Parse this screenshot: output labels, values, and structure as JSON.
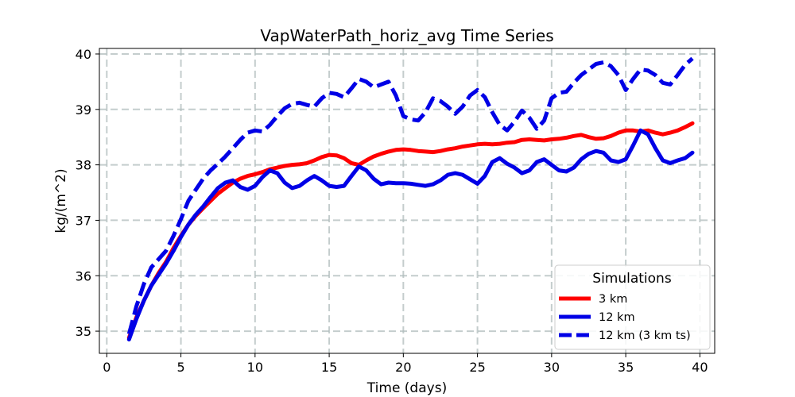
{
  "chart_data": {
    "type": "line",
    "title": "VapWaterPath_horiz_avg Time Series",
    "xlabel": "Time (days)",
    "ylabel": "kg/(m^2)",
    "xlim": [
      -0.5,
      41
    ],
    "ylim": [
      34.6,
      40.1
    ],
    "xticks": [
      0,
      5,
      10,
      15,
      20,
      25,
      30,
      35,
      40
    ],
    "yticks": [
      35,
      36,
      37,
      38,
      39,
      40
    ],
    "grid": true,
    "legend": {
      "title": "Simulations",
      "location": "lower-right"
    },
    "series": [
      {
        "name": "3 km",
        "color": "#ff0000",
        "dash": "solid",
        "x": [
          1.5,
          2,
          2.5,
          3,
          3.5,
          4,
          4.5,
          5,
          5.5,
          6,
          6.5,
          7,
          7.5,
          8,
          8.5,
          9,
          9.5,
          10,
          10.5,
          11,
          11.5,
          12,
          12.5,
          13,
          13.5,
          14,
          14.5,
          15,
          15.5,
          16,
          16.5,
          17,
          17.5,
          18,
          18.5,
          19,
          19.5,
          20,
          20.5,
          21,
          21.5,
          22,
          22.5,
          23,
          23.5,
          24,
          24.5,
          25,
          25.5,
          26,
          26.5,
          27,
          27.5,
          28,
          28.5,
          29,
          29.5,
          30,
          30.5,
          31,
          31.5,
          32,
          32.5,
          33,
          33.5,
          34,
          34.5,
          35,
          35.5,
          36,
          36.5,
          37,
          37.5,
          38,
          38.5,
          39,
          39.5
        ],
        "y": [
          34.88,
          35.25,
          35.55,
          35.82,
          36.05,
          36.25,
          36.5,
          36.72,
          36.92,
          37.08,
          37.22,
          37.35,
          37.48,
          37.58,
          37.68,
          37.75,
          37.8,
          37.83,
          37.87,
          37.92,
          37.95,
          37.98,
          38.0,
          38.01,
          38.03,
          38.08,
          38.14,
          38.18,
          38.17,
          38.12,
          38.03,
          38.0,
          38.08,
          38.15,
          38.2,
          38.24,
          38.27,
          38.28,
          38.27,
          38.25,
          38.24,
          38.23,
          38.25,
          38.28,
          38.3,
          38.33,
          38.35,
          38.37,
          38.38,
          38.37,
          38.38,
          38.4,
          38.41,
          38.45,
          38.46,
          38.45,
          38.44,
          38.46,
          38.47,
          38.49,
          38.52,
          38.54,
          38.5,
          38.47,
          38.48,
          38.52,
          38.58,
          38.62,
          38.62,
          38.6,
          38.62,
          38.58,
          38.55,
          38.58,
          38.62,
          38.68,
          38.75
        ]
      },
      {
        "name": "12 km",
        "color": "#0000e6",
        "dash": "solid",
        "x": [
          1.5,
          2,
          2.5,
          3,
          3.5,
          4,
          4.5,
          5,
          5.5,
          6,
          6.5,
          7,
          7.5,
          8,
          8.5,
          9,
          9.5,
          10,
          10.5,
          11,
          11.5,
          12,
          12.5,
          13,
          13.5,
          14,
          14.5,
          15,
          15.5,
          16,
          16.5,
          17,
          17.5,
          18,
          18.5,
          19,
          19.5,
          20,
          20.5,
          21,
          21.5,
          22,
          22.5,
          23,
          23.5,
          24,
          24.5,
          25,
          25.5,
          26,
          26.5,
          27,
          27.5,
          28,
          28.5,
          29,
          29.5,
          30,
          30.5,
          31,
          31.5,
          32,
          32.5,
          33,
          33.5,
          34,
          34.5,
          35,
          35.5,
          36,
          36.5,
          37,
          37.5,
          38,
          38.5,
          39,
          39.5
        ],
        "y": [
          34.85,
          35.22,
          35.55,
          35.82,
          36.02,
          36.22,
          36.45,
          36.7,
          36.92,
          37.1,
          37.25,
          37.42,
          37.58,
          37.68,
          37.72,
          37.6,
          37.55,
          37.62,
          37.78,
          37.9,
          37.85,
          37.68,
          37.58,
          37.62,
          37.72,
          37.8,
          37.72,
          37.62,
          37.6,
          37.62,
          37.8,
          37.97,
          37.9,
          37.75,
          37.65,
          37.68,
          37.67,
          37.67,
          37.66,
          37.64,
          37.62,
          37.65,
          37.72,
          37.82,
          37.85,
          37.82,
          37.74,
          37.66,
          37.8,
          38.05,
          38.12,
          38.02,
          37.95,
          37.85,
          37.9,
          38.05,
          38.1,
          38.0,
          37.9,
          37.88,
          37.95,
          38.1,
          38.2,
          38.25,
          38.22,
          38.08,
          38.05,
          38.1,
          38.35,
          38.62,
          38.55,
          38.3,
          38.08,
          38.03,
          38.08,
          38.12,
          38.22
        ]
      },
      {
        "name": "12 km (3 km ts)",
        "color": "#0000e6",
        "dash": "dashed",
        "x": [
          1.5,
          2,
          2.5,
          3,
          3.5,
          4,
          4.5,
          5,
          5.5,
          6,
          6.5,
          7,
          7.5,
          8,
          8.5,
          9,
          9.5,
          10,
          10.5,
          11,
          11.5,
          12,
          12.5,
          13,
          13.5,
          14,
          14.5,
          15,
          15.5,
          16,
          16.5,
          17,
          17.5,
          18,
          18.5,
          19,
          19.5,
          20,
          20.5,
          21,
          21.5,
          22,
          22.5,
          23,
          23.5,
          24,
          24.5,
          25,
          25.5,
          26,
          26.5,
          27,
          27.5,
          28,
          28.5,
          29,
          29.5,
          30,
          30.5,
          31,
          31.5,
          32,
          32.5,
          33,
          33.5,
          34,
          34.5,
          35,
          35.5,
          36,
          36.5,
          37,
          37.5,
          38,
          38.5,
          39,
          39.5
        ],
        "y": [
          34.95,
          35.45,
          35.85,
          36.15,
          36.3,
          36.45,
          36.72,
          37.02,
          37.35,
          37.55,
          37.75,
          37.9,
          38.02,
          38.15,
          38.3,
          38.45,
          38.58,
          38.62,
          38.6,
          38.72,
          38.88,
          39.02,
          39.1,
          39.12,
          39.08,
          39.05,
          39.2,
          39.3,
          39.28,
          39.22,
          39.38,
          39.55,
          39.5,
          39.4,
          39.45,
          39.5,
          39.25,
          38.88,
          38.82,
          38.8,
          38.95,
          39.2,
          39.15,
          39.05,
          38.92,
          39.05,
          39.25,
          39.35,
          39.22,
          38.95,
          38.72,
          38.62,
          38.78,
          38.98,
          38.85,
          38.65,
          38.8,
          39.2,
          39.3,
          39.32,
          39.48,
          39.62,
          39.72,
          39.82,
          39.85,
          39.78,
          39.62,
          39.35,
          39.55,
          39.72,
          39.7,
          39.62,
          39.48,
          39.45,
          39.62,
          39.8,
          39.92
        ]
      }
    ]
  }
}
